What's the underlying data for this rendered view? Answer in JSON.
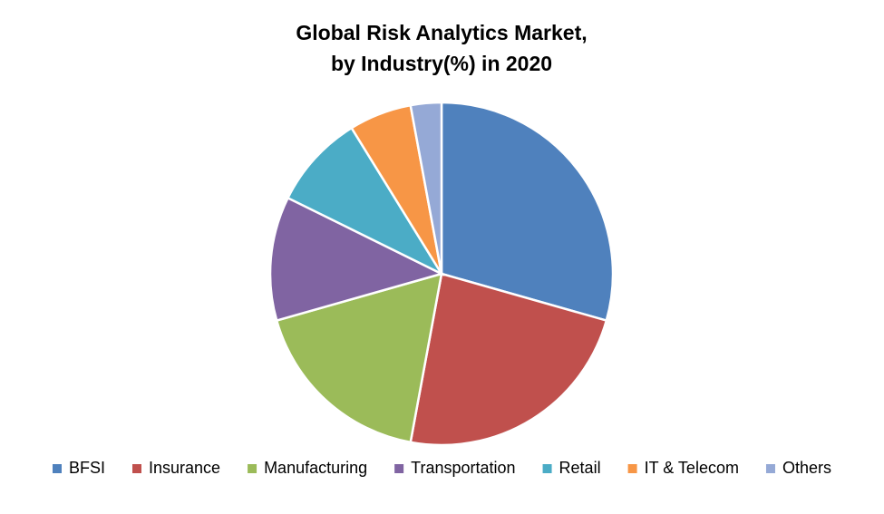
{
  "chart_data": {
    "type": "pie",
    "title": [
      "Global Risk Analytics Market,",
      "by Industry(%) in 2020"
    ],
    "categories": [
      "BFSI",
      "Insurance",
      "Manufacturing",
      "Transportation",
      "Retail",
      "IT & Telecom",
      "Others"
    ],
    "values": [
      29.4,
      23.5,
      17.7,
      11.7,
      8.9,
      5.9,
      2.9
    ],
    "colors": [
      "#4f81bd",
      "#c0504d",
      "#9bbb59",
      "#8064a2",
      "#4bacc6",
      "#f79646",
      "#95a9d6"
    ],
    "legend": "bottom"
  }
}
